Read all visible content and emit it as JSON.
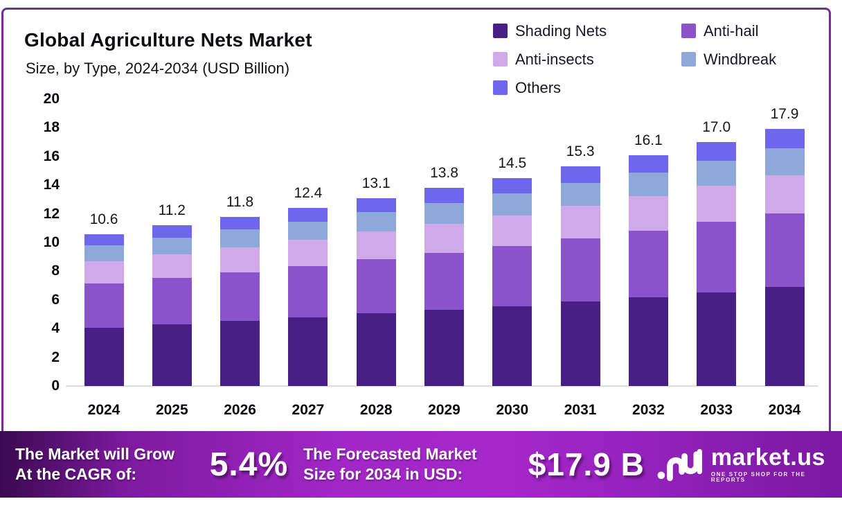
{
  "header": {
    "title": "Global Agriculture Nets Market",
    "subtitle": "Size, by Type, 2024-2034 (USD Billion)"
  },
  "chart_data": {
    "type": "bar",
    "stacked": true,
    "title": "Global Agriculture Nets Market Size, by Type, 2024-2034 (USD Billion)",
    "unit": "USD Billion",
    "categories": [
      "2024",
      "2025",
      "2026",
      "2027",
      "2028",
      "2029",
      "2030",
      "2031",
      "2032",
      "2033",
      "2034"
    ],
    "totals": [
      10.6,
      11.2,
      11.8,
      12.4,
      13.1,
      13.8,
      14.5,
      15.3,
      16.1,
      17.0,
      17.9
    ],
    "series": [
      {
        "name": "Shading Nets",
        "color": "#481f85",
        "values": [
          4.08,
          4.31,
          4.54,
          4.77,
          5.04,
          5.31,
          5.58,
          5.89,
          6.2,
          6.55,
          6.89
        ]
      },
      {
        "name": "Anti-hail",
        "color": "#8a52cb",
        "values": [
          3.05,
          3.23,
          3.4,
          3.57,
          3.77,
          3.97,
          4.18,
          4.41,
          4.64,
          4.9,
          5.16
        ]
      },
      {
        "name": "Anti-insects",
        "color": "#d0a9e9",
        "values": [
          1.57,
          1.66,
          1.75,
          1.84,
          1.94,
          2.04,
          2.15,
          2.26,
          2.38,
          2.52,
          2.65
        ]
      },
      {
        "name": "Windbreak",
        "color": "#8ea8da",
        "values": [
          1.1,
          1.16,
          1.23,
          1.29,
          1.36,
          1.44,
          1.51,
          1.59,
          1.67,
          1.77,
          1.86
        ]
      },
      {
        "name": "Others",
        "color": "#6f66ee",
        "values": [
          0.8,
          0.84,
          0.89,
          0.93,
          0.98,
          1.04,
          1.09,
          1.15,
          1.21,
          1.28,
          1.34
        ]
      }
    ],
    "y_ticks": [
      0,
      2,
      4,
      6,
      8,
      10,
      12,
      14,
      16,
      18,
      20
    ],
    "ylim": [
      0,
      20
    ],
    "grid": false,
    "legend_position": "top-right"
  },
  "banner": {
    "cagr_label_line1": "The Market will Grow",
    "cagr_label_line2": "At the CAGR of:",
    "cagr_value": "5.4%",
    "forecast_label_line1": "The Forecasted Market",
    "forecast_label_line2": "Size for 2034 in USD:",
    "forecast_value": "$17.9 B",
    "logo_name": "market.us",
    "logo_tagline": "ONE STOP SHOP FOR THE REPORTS"
  },
  "colors": {
    "card_border": "#7b2b93",
    "banner_gradient_left": "#3a0950",
    "banner_gradient_mid": "#a127c6",
    "banner_gradient_right": "#7a18a0",
    "axis_line": "#dcdce1"
  }
}
